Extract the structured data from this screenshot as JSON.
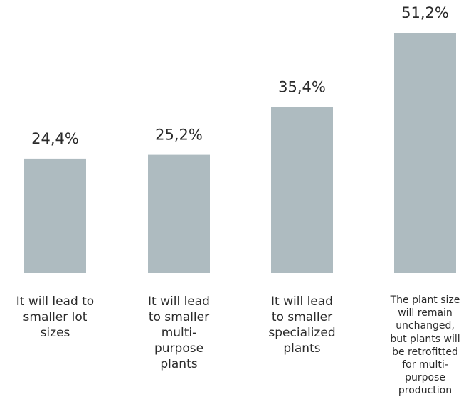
{
  "chart_data": {
    "type": "bar",
    "categories": [
      "It will lead to smaller lot sizes",
      "It will lead to smaller multi-purpose plants",
      "It will lead to smaller specialized plants",
      "The plant size will remain unchanged, but plants will be retrofitted for multi-purpose production"
    ],
    "values": [
      24.4,
      25.2,
      35.4,
      51.2
    ],
    "value_labels": [
      "24,4%",
      "25,2%",
      "35,4%",
      "51,2%"
    ],
    "category_lines": [
      [
        "It will lead to",
        "smaller lot",
        "sizes"
      ],
      [
        "It will lead",
        "to smaller",
        "multi-",
        "purpose",
        "plants"
      ],
      [
        "It will lead",
        "to smaller",
        "specialized",
        "plants"
      ],
      [
        "The plant size",
        "will remain",
        "unchanged,",
        "but plants will",
        "be retrofitted",
        "for multi-",
        "purpose",
        "production"
      ]
    ],
    "title": "",
    "xlabel": "",
    "ylabel": "",
    "ylim": [
      0,
      51.2
    ],
    "grid": false,
    "legend": "none",
    "bar_color": "#aebbc0",
    "text_color": "#2a2a2a"
  }
}
